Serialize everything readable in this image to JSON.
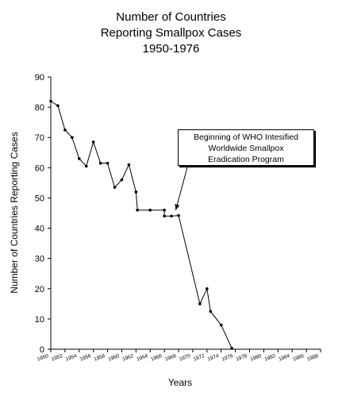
{
  "chart_data": {
    "type": "line",
    "title": [
      "Number of Countries",
      "Reporting Smallpox Cases",
      "1950-1976"
    ],
    "xlabel": "Years",
    "ylabel": "Number of Countries Reporting Cases",
    "xlim": [
      1950,
      1988
    ],
    "ylim": [
      0,
      90
    ],
    "y_ticks": [
      0,
      10,
      20,
      30,
      40,
      50,
      60,
      70,
      80,
      90
    ],
    "x_ticks": [
      1950,
      1952,
      1954,
      1956,
      1958,
      1960,
      1962,
      1964,
      1966,
      1968,
      1970,
      1972,
      1974,
      1976,
      1978,
      1980,
      1982,
      1984,
      1986,
      1988
    ],
    "x_tick_labels": [
      "1950",
      "1952",
      "1954",
      "1956",
      "1958",
      "1960",
      "1962",
      "1964",
      "1966",
      "1968",
      "1970",
      "1972",
      "1974",
      "1976",
      "1978",
      "1980",
      "1982",
      "1984",
      "1986",
      "1988"
    ],
    "grid": false,
    "series": [
      {
        "points": [
          [
            1950,
            82
          ],
          [
            1951,
            80.5
          ],
          [
            1952,
            72.5
          ],
          [
            1953,
            70
          ],
          [
            1954,
            63
          ],
          [
            1955,
            60.5
          ],
          [
            1956,
            68.5
          ],
          [
            1957,
            61.5
          ],
          [
            1958,
            61.5
          ],
          [
            1959,
            53.5
          ],
          [
            1960,
            56
          ],
          [
            1961,
            61
          ],
          [
            1962,
            52
          ],
          [
            1962.2,
            46
          ],
          [
            1964,
            46
          ],
          [
            1966,
            46
          ],
          [
            1966,
            44
          ],
          [
            1967,
            44
          ],
          [
            1968,
            44.2
          ],
          [
            1971,
            15
          ],
          [
            1972,
            20
          ],
          [
            1972.5,
            12.5
          ],
          [
            1974,
            8
          ],
          [
            1975.5,
            0.3
          ]
        ]
      }
    ],
    "annotation": {
      "lines": [
        "Beginning of WHO Intesified",
        "Worldwide Smallpox",
        "Eradication Program"
      ],
      "arrow_to": [
        1967.6,
        46
      ]
    }
  }
}
